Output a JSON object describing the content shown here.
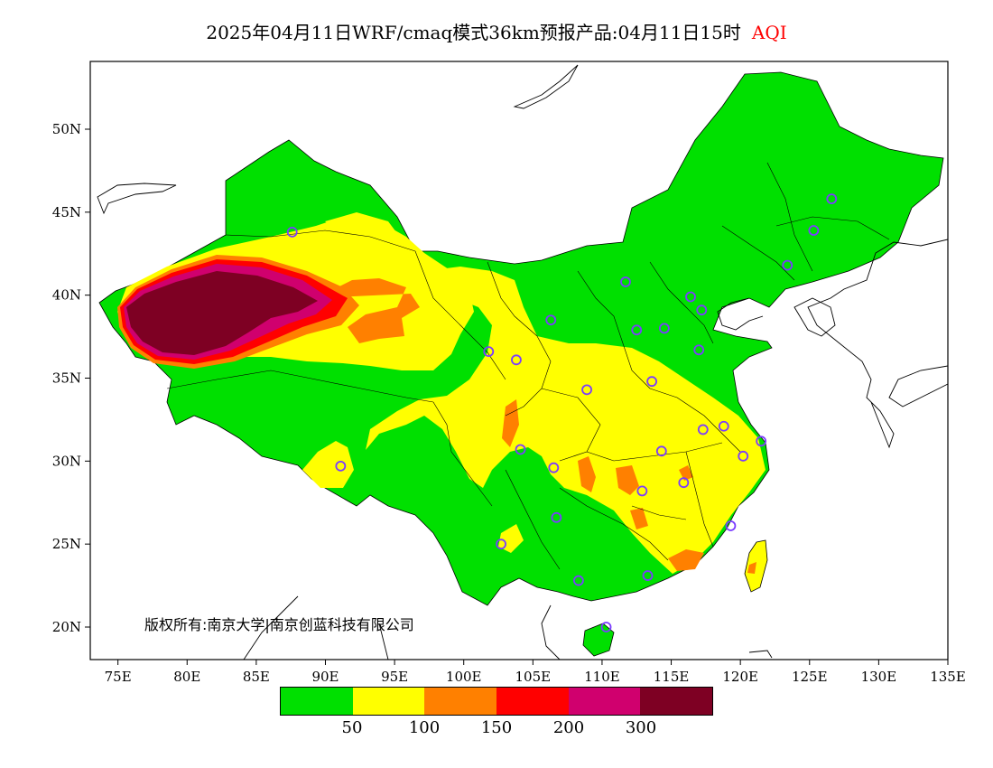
{
  "title": {
    "text": "2025年04月11日WRF/cmaq模式36km预报产品:04月11日15时",
    "variable": "AQI"
  },
  "axes": {
    "x_ticks": [
      "75E",
      "80E",
      "85E",
      "90E",
      "95E",
      "100E",
      "105E",
      "110E",
      "115E",
      "120E",
      "125E",
      "130E",
      "135E"
    ],
    "y_ticks": [
      "50N",
      "45N",
      "40N",
      "35N",
      "30N",
      "25N",
      "20N"
    ]
  },
  "copyright": "版权所有:南京大学|南京创蓝科技有限公司",
  "legend": {
    "colors": [
      "#00e000",
      "#ffff00",
      "#ff8000",
      "#ff0000",
      "#d0006e",
      "#7e0023"
    ],
    "labels": [
      "50",
      "100",
      "150",
      "200",
      "300"
    ]
  },
  "map_colors": {
    "good": "#00e000",
    "moderate": "#ffff00",
    "usg": "#ff8000",
    "unhealthy": "#ff0000",
    "very_unhealthy": "#d0006e",
    "hazardous": "#7e0023",
    "station_marker": "#7b3cff"
  },
  "stations": [
    {
      "lon": 87.6,
      "lat": 43.8
    },
    {
      "lon": 101.8,
      "lat": 36.6
    },
    {
      "lon": 103.8,
      "lat": 36.1
    },
    {
      "lon": 106.3,
      "lat": 38.5
    },
    {
      "lon": 111.7,
      "lat": 40.8
    },
    {
      "lon": 116.4,
      "lat": 39.9
    },
    {
      "lon": 117.2,
      "lat": 39.1
    },
    {
      "lon": 112.5,
      "lat": 37.9
    },
    {
      "lon": 114.5,
      "lat": 38.0
    },
    {
      "lon": 117.0,
      "lat": 36.7
    },
    {
      "lon": 113.6,
      "lat": 34.8
    },
    {
      "lon": 108.9,
      "lat": 34.3
    },
    {
      "lon": 123.4,
      "lat": 41.8
    },
    {
      "lon": 125.3,
      "lat": 43.9
    },
    {
      "lon": 126.6,
      "lat": 45.8
    },
    {
      "lon": 117.3,
      "lat": 31.9
    },
    {
      "lon": 118.8,
      "lat": 32.1
    },
    {
      "lon": 121.5,
      "lat": 31.2
    },
    {
      "lon": 120.2,
      "lat": 30.3
    },
    {
      "lon": 114.3,
      "lat": 30.6
    },
    {
      "lon": 106.5,
      "lat": 29.6
    },
    {
      "lon": 104.1,
      "lat": 30.7
    },
    {
      "lon": 112.9,
      "lat": 28.2
    },
    {
      "lon": 115.9,
      "lat": 28.7
    },
    {
      "lon": 119.3,
      "lat": 26.1
    },
    {
      "lon": 106.7,
      "lat": 26.6
    },
    {
      "lon": 102.7,
      "lat": 25.0
    },
    {
      "lon": 108.3,
      "lat": 22.8
    },
    {
      "lon": 113.3,
      "lat": 23.1
    },
    {
      "lon": 110.3,
      "lat": 20.0
    },
    {
      "lon": 91.1,
      "lat": 29.7
    }
  ]
}
